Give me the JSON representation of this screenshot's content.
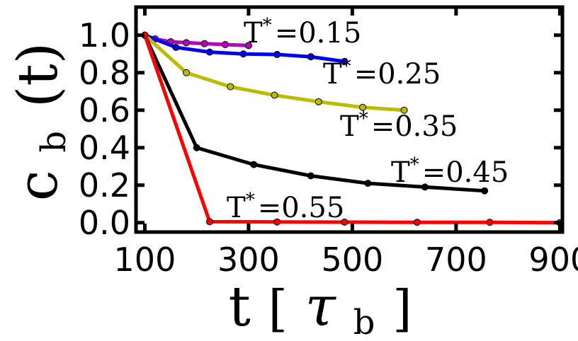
{
  "chart_data": {
    "type": "line",
    "title": "",
    "xlabel_main": "t",
    "xlabel_unit": "τ",
    "xlabel_unit_sub": "b",
    "ylabel_main": "c",
    "ylabel_sub": "b",
    "ylabel_arg": "(t)",
    "xlim": [
      83,
      905
    ],
    "ylim": [
      -0.05,
      1.15
    ],
    "xticks": [
      100,
      300,
      500,
      700,
      900
    ],
    "xtick_labels": [
      "100",
      "300",
      "500",
      "700",
      "900"
    ],
    "yticks": [
      0.0,
      0.2,
      0.4,
      0.6,
      0.8,
      1.0
    ],
    "ytick_labels": [
      "0.0",
      "0.2",
      "0.4",
      "0.6",
      "0.8",
      "1.0"
    ],
    "grid": false,
    "legend": "none",
    "series": [
      {
        "color": "#bb00bb",
        "x": [
          100,
          120,
          150,
          180,
          215,
          255,
          300
        ],
        "y": [
          1.0,
          0.98,
          0.965,
          0.96,
          0.955,
          0.95,
          0.945
        ],
        "annotation": {
          "T": "T",
          "star": "*",
          "eq": "=0.15"
        }
      },
      {
        "color": "#0000ee",
        "x": [
          100,
          160,
          225,
          290,
          355,
          420,
          485
        ],
        "y": [
          1.0,
          0.935,
          0.91,
          0.9,
          0.897,
          0.885,
          0.86
        ],
        "annotation": {
          "T": "T",
          "star": "*",
          "eq": "=0.25"
        }
      },
      {
        "color": "#bbbb00",
        "x": [
          100,
          180,
          265,
          350,
          435,
          520,
          600
        ],
        "y": [
          1.0,
          0.8,
          0.725,
          0.68,
          0.645,
          0.615,
          0.6
        ],
        "annotation": {
          "T": "T",
          "star": "*",
          "eq": "=0.35"
        }
      },
      {
        "color": "#000000",
        "x": [
          100,
          200,
          310,
          420,
          530,
          640,
          755
        ],
        "y": [
          1.0,
          0.4,
          0.31,
          0.25,
          0.21,
          0.19,
          0.17
        ],
        "annotation": {
          "T": "T",
          "star": "*",
          "eq": "=0.45"
        }
      },
      {
        "color": "#ff0000",
        "x": [
          100,
          225,
          355,
          485,
          625,
          765,
          900
        ],
        "y": [
          1.0,
          0.005,
          0.004,
          0.003,
          0.002,
          0.002,
          0.0
        ],
        "annotation": {
          "T": "T",
          "star": "*",
          "eq": "=0.55"
        }
      }
    ]
  }
}
